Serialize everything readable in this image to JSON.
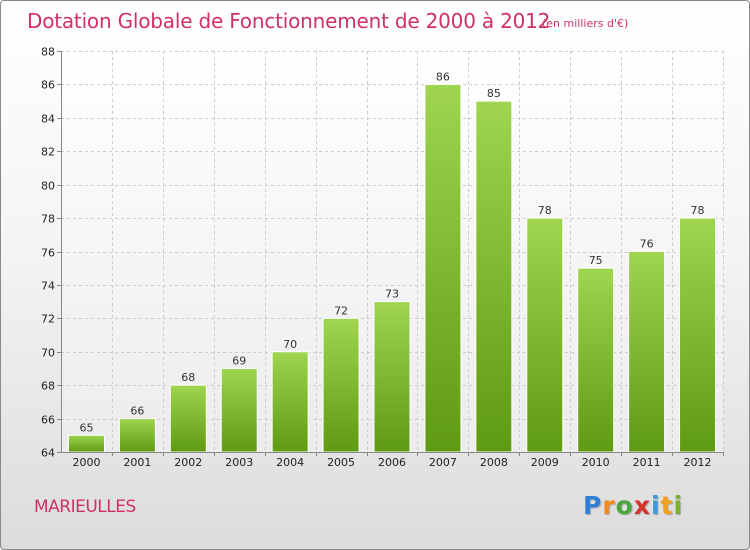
{
  "header": {
    "title": "Dotation Globale de Fonctionnement de 2000 à 2012",
    "unit": "(en milliers d'€)"
  },
  "footer": {
    "commune": "MARIEULLES",
    "brand_letters": [
      "P",
      "r",
      "o",
      "x",
      "i",
      "t",
      "i"
    ],
    "brand_colors": [
      "#2f7fd6",
      "#f28a1c",
      "#4aa63c",
      "#d8302a",
      "#3d9ad8",
      "#f2a21c",
      "#79b32c"
    ]
  },
  "colors": {
    "title": "#d0306a",
    "bar_top": "#9fd54f",
    "bar_bottom": "#5e9a12",
    "grid": "#cccccc",
    "axis": "#888888"
  },
  "chart_data": {
    "type": "bar",
    "categories": [
      "2000",
      "2001",
      "2002",
      "2003",
      "2004",
      "2005",
      "2006",
      "2007",
      "2008",
      "2009",
      "2010",
      "2011",
      "2012"
    ],
    "values": [
      65,
      66,
      68,
      69,
      70,
      72,
      73,
      86,
      85,
      78,
      75,
      76,
      78
    ],
    "ylim": [
      64,
      88
    ],
    "yticks": [
      64,
      66,
      68,
      70,
      72,
      74,
      76,
      78,
      80,
      82,
      84,
      86,
      88
    ],
    "grid": true,
    "data_labels": true
  }
}
